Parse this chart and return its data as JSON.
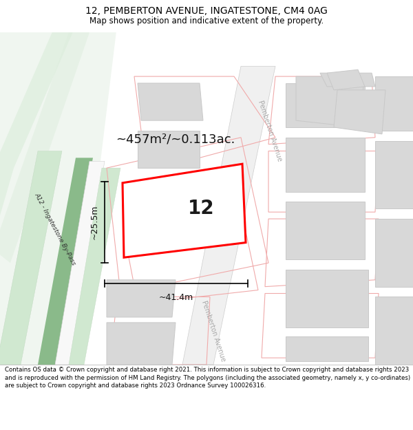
{
  "title": "12, PEMBERTON AVENUE, INGATESTONE, CM4 0AG",
  "subtitle": "Map shows position and indicative extent of the property.",
  "footer": "Contains OS data © Crown copyright and database right 2021. This information is subject to Crown copyright and database rights 2023 and is reproduced with the permission of HM Land Registry. The polygons (including the associated geometry, namely x, y co-ordinates) are subject to Crown copyright and database rights 2023 Ordnance Survey 100026316.",
  "area_label": "~457m²/~0.113ac.",
  "width_label": "~41.4m",
  "height_label": "~25.5m",
  "number_label": "12",
  "road_label": "A12 - Ingatestone By-Pass",
  "street_label_1": "Pemberton Avenue",
  "street_label_2": "Pemberton Avenue",
  "title_fontsize": 10,
  "subtitle_fontsize": 8.5,
  "footer_fontsize": 6.2,
  "map_bg": "#ffffff",
  "road_green_dark": "#7ab87a",
  "road_green_light": "#d6ead6",
  "building_fill": "#d8d8d8",
  "building_stroke": "#c8c8c8",
  "plot_outline_fill": "#f0f0f0",
  "plot_outline_stroke": "#f0aaaa",
  "subject_stroke": "#ff0000",
  "subject_lw": 2.0,
  "text_dark": "#111111",
  "text_grey": "#aaaaaa"
}
